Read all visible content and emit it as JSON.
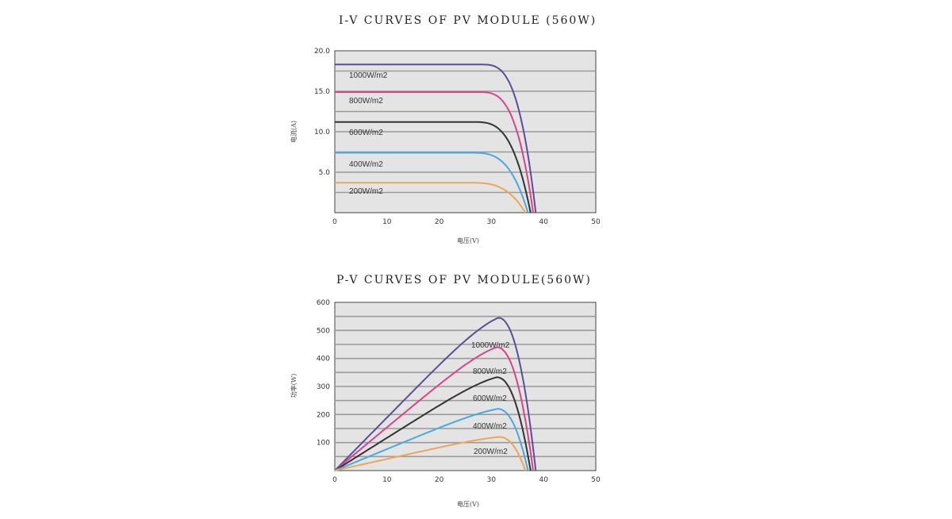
{
  "chart_data": [
    {
      "type": "line",
      "title": "I-V CURVES OF PV MODULE (560W)",
      "xlabel": "电压(V)",
      "ylabel": "电流(A)",
      "xlim": [
        0,
        50
      ],
      "ylim": [
        0,
        20
      ],
      "x_ticks": [
        "0",
        "10",
        "20",
        "30",
        "40",
        "50"
      ],
      "y_ticks": [
        "5.0",
        "10.0",
        "15.0",
        "20.0"
      ],
      "grid": true,
      "series": [
        {
          "name": "1000W/m2",
          "color": "#5a4f96",
          "isc": 18.3,
          "knee_v": 32.0,
          "voc": 38.5
        },
        {
          "name": "800W/m2",
          "color": "#d8438a",
          "isc": 14.9,
          "knee_v": 31.5,
          "voc": 38.0
        },
        {
          "name": "600W/m2",
          "color": "#333333",
          "isc": 11.2,
          "knee_v": 30.5,
          "voc": 37.5
        },
        {
          "name": "400W/m2",
          "color": "#4aa8dc",
          "isc": 7.4,
          "knee_v": 30.0,
          "voc": 37.0
        },
        {
          "name": "200W/m2",
          "color": "#eba759",
          "isc": 3.7,
          "knee_v": 29.5,
          "voc": 36.5
        }
      ]
    },
    {
      "type": "line",
      "title": "P-V CURVES OF PV MODULE(560W)",
      "xlabel": "电压(V)",
      "ylabel": "功率(W)",
      "xlim": [
        0,
        50
      ],
      "ylim": [
        0,
        600
      ],
      "x_ticks": [
        "0",
        "10",
        "20",
        "30",
        "40",
        "50"
      ],
      "y_ticks": [
        "100",
        "200",
        "300",
        "400",
        "500",
        "600"
      ],
      "grid": true,
      "series": [
        {
          "name": "1000W/m2",
          "color": "#5a4f96",
          "pmax": 545,
          "vmp": 31.3,
          "voc": 38.5
        },
        {
          "name": "800W/m2",
          "color": "#d8438a",
          "pmax": 440,
          "vmp": 31.0,
          "voc": 38.0
        },
        {
          "name": "600W/m2",
          "color": "#333333",
          "pmax": 333,
          "vmp": 31.0,
          "voc": 37.5
        },
        {
          "name": "400W/m2",
          "color": "#4aa8dc",
          "pmax": 220,
          "vmp": 31.2,
          "voc": 37.0
        },
        {
          "name": "200W/m2",
          "color": "#eba759",
          "pmax": 120,
          "vmp": 31.5,
          "voc": 36.5
        }
      ]
    }
  ]
}
